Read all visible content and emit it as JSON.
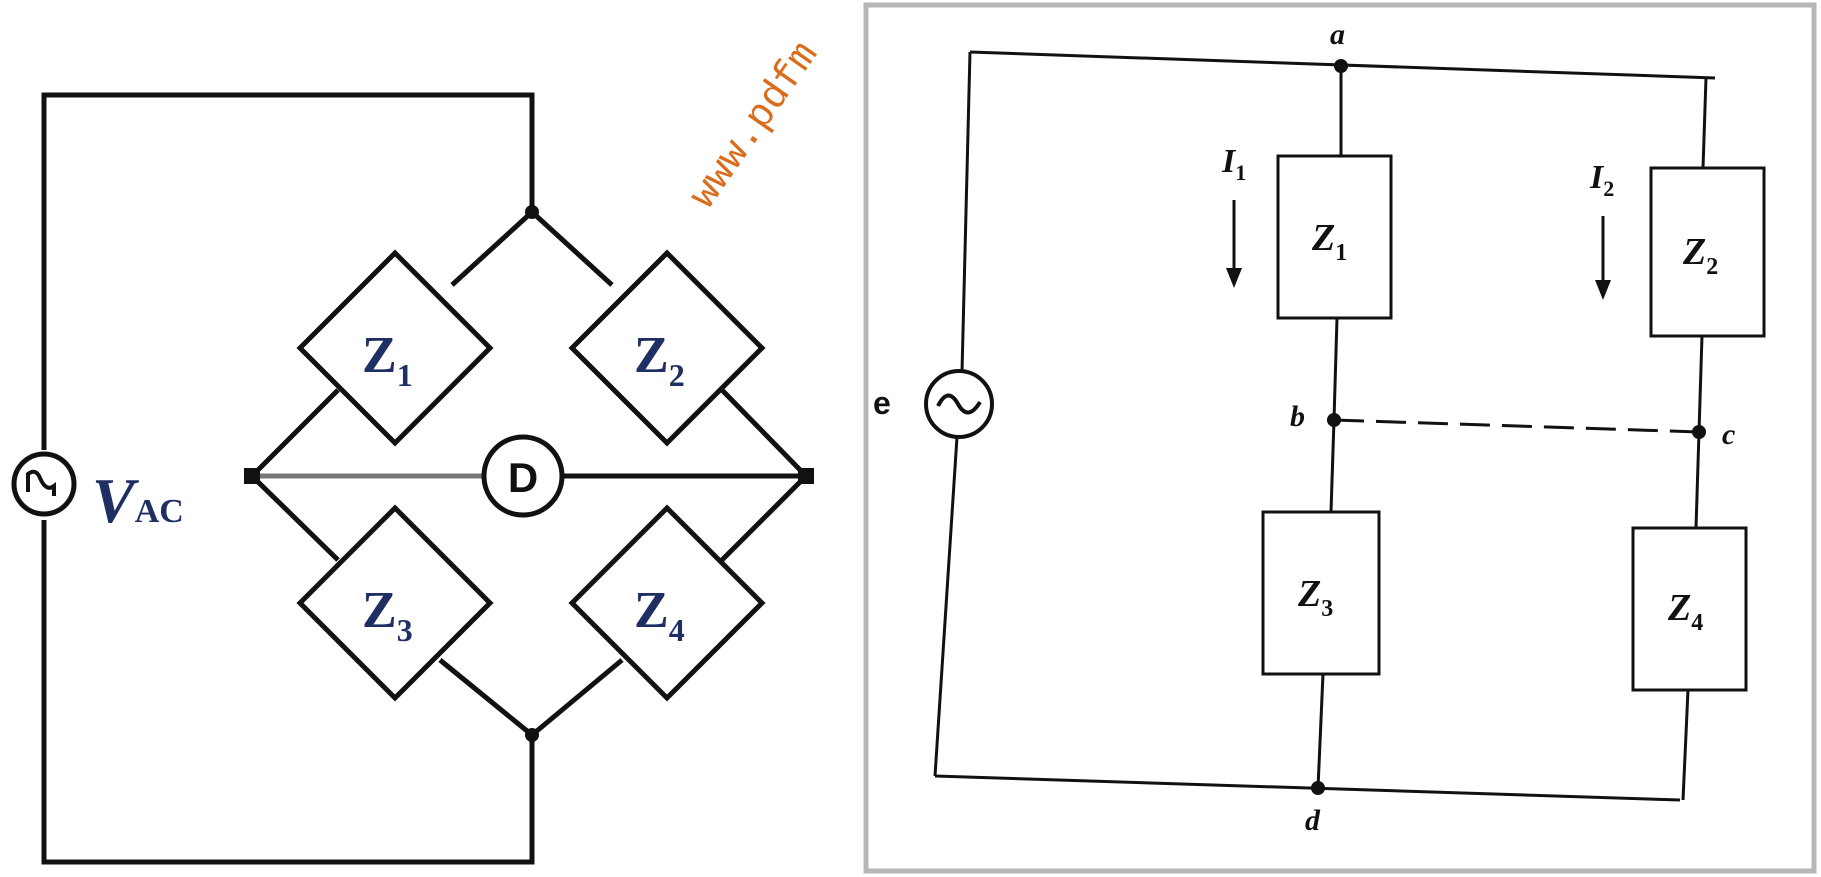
{
  "left_bridge": {
    "source_label_main": "V",
    "source_label_sub": "AC",
    "detector_label": "D",
    "impedances": [
      {
        "main": "Z",
        "sub": "1"
      },
      {
        "main": "Z",
        "sub": "2"
      },
      {
        "main": "Z",
        "sub": "3"
      },
      {
        "main": "Z",
        "sub": "4"
      }
    ]
  },
  "right_bridge": {
    "source_label_fragment": "e",
    "nodes": {
      "a": "a",
      "b": "b",
      "c": "c",
      "d": "d"
    },
    "currents": [
      {
        "main": "I",
        "sub": "1"
      },
      {
        "main": "I",
        "sub": "2"
      }
    ],
    "impedances": [
      {
        "main": "Z",
        "sub": "1"
      },
      {
        "main": "Z",
        "sub": "2"
      },
      {
        "main": "Z",
        "sub": "3"
      },
      {
        "main": "Z",
        "sub": "4"
      }
    ]
  },
  "watermark": "www.pdfm",
  "colors": {
    "ink": "#111111",
    "label_blue": "#1f2f63",
    "frame_gray": "#b7b7b7",
    "watermark_orange": "#d96d1b"
  }
}
